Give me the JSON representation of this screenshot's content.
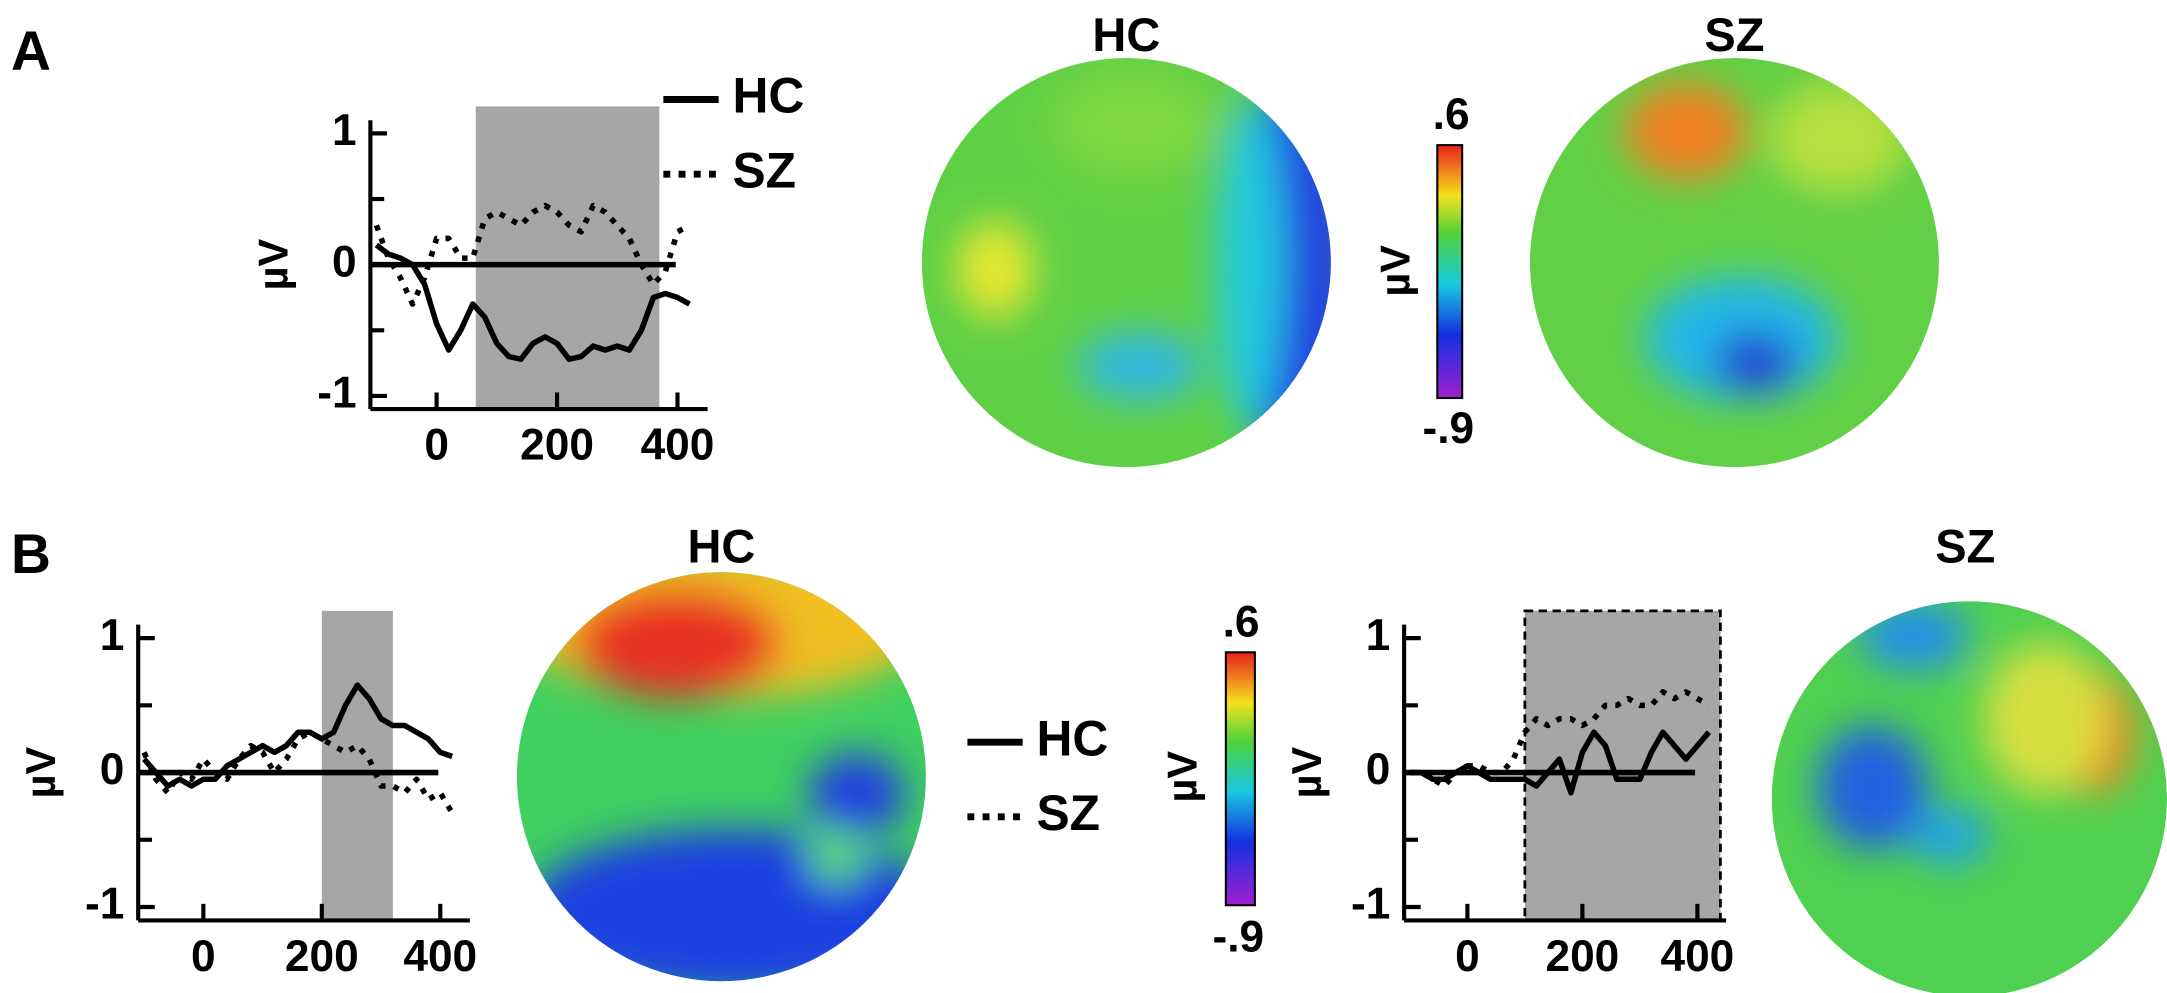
{
  "panel_labels": [
    "A",
    "B"
  ],
  "topomaps": [
    {
      "title": "HC"
    },
    {
      "title": "SZ"
    },
    {
      "title": "HC"
    },
    {
      "title": "SZ"
    }
  ],
  "colorbars": [
    {
      "unit": "µV",
      "top": {
        "value": 0.6,
        "label": ".6"
      },
      "bottom": {
        "value": -0.9,
        "label": "-.9"
      }
    },
    {
      "unit": "µV",
      "top": {
        "value": 0.6,
        "label": ".6"
      },
      "bottom": {
        "value": -0.9,
        "label": "-.9"
      }
    }
  ],
  "chart_data": [
    {
      "type": "line",
      "y_label": "µV",
      "xlim": [
        -110,
        450
      ],
      "ylim": [
        -1.1,
        1.1
      ],
      "xticks": [
        0,
        200,
        400
      ],
      "yticks": [
        -1,
        0,
        1
      ],
      "yminorticks": [
        -0.5,
        0.5
      ],
      "shade": [
        65,
        370
      ],
      "legend": "top-right",
      "x": [
        -100,
        -80,
        -60,
        -40,
        -20,
        0,
        20,
        40,
        60,
        80,
        100,
        120,
        140,
        160,
        180,
        200,
        220,
        240,
        260,
        280,
        300,
        320,
        340,
        360,
        380,
        400,
        420
      ],
      "series": [
        {
          "name": "HC",
          "color": "#000000",
          "style": "solid",
          "values": [
            0.15,
            0.08,
            0.05,
            0.0,
            -0.15,
            -0.45,
            -0.65,
            -0.5,
            -0.3,
            -0.4,
            -0.6,
            -0.7,
            -0.72,
            -0.6,
            -0.55,
            -0.6,
            -0.72,
            -0.7,
            -0.62,
            -0.65,
            -0.62,
            -0.65,
            -0.5,
            -0.25,
            -0.22,
            -0.25,
            -0.3
          ]
        },
        {
          "name": "SZ",
          "color": "#000000",
          "style": "dotted",
          "values": [
            0.3,
            0.05,
            -0.1,
            -0.3,
            -0.1,
            0.2,
            0.2,
            0.05,
            0.05,
            0.35,
            0.4,
            0.35,
            0.3,
            0.4,
            0.45,
            0.4,
            0.3,
            0.25,
            0.45,
            0.4,
            0.3,
            0.2,
            0.0,
            -0.15,
            -0.05,
            0.25,
            0.3
          ]
        }
      ]
    },
    {
      "type": "line",
      "y_label": "µV",
      "xlim": [
        -110,
        450
      ],
      "ylim": [
        -1.1,
        1.1
      ],
      "xticks": [
        0,
        200,
        400
      ],
      "yticks": [
        -1,
        0,
        1
      ],
      "yminorticks": [
        -0.5,
        0.5
      ],
      "shade": [
        200,
        320
      ],
      "legend": "middle",
      "x": [
        -100,
        -80,
        -60,
        -40,
        -20,
        0,
        20,
        40,
        60,
        80,
        100,
        120,
        140,
        160,
        180,
        200,
        220,
        240,
        260,
        280,
        300,
        320,
        340,
        360,
        380,
        400,
        420
      ],
      "series": [
        {
          "name": "HC",
          "color": "#000000",
          "style": "solid",
          "values": [
            0.1,
            0.0,
            -0.1,
            -0.05,
            -0.1,
            -0.05,
            -0.05,
            0.05,
            0.1,
            0.15,
            0.2,
            0.15,
            0.2,
            0.3,
            0.3,
            0.25,
            0.3,
            0.5,
            0.65,
            0.55,
            0.4,
            0.35,
            0.35,
            0.3,
            0.25,
            0.15,
            0.12
          ]
        },
        {
          "name": "SZ",
          "color": "#000000",
          "style": "dotted",
          "values": [
            0.15,
            -0.05,
            -0.15,
            0.0,
            -0.05,
            0.1,
            0.0,
            -0.05,
            0.1,
            0.2,
            0.15,
            0.0,
            0.1,
            0.25,
            0.3,
            0.25,
            0.2,
            0.15,
            0.2,
            0.1,
            -0.1,
            -0.1,
            -0.15,
            -0.05,
            -0.2,
            -0.15,
            -0.3
          ]
        }
      ]
    },
    {
      "type": "line",
      "y_label": "µV",
      "xlim": [
        -110,
        450
      ],
      "ylim": [
        -1.1,
        1.1
      ],
      "xticks": [
        0,
        200,
        400
      ],
      "yticks": [
        -1,
        0,
        1
      ],
      "yminorticks": [
        -0.5,
        0.5
      ],
      "shade": [
        100,
        440
      ],
      "x": [
        -100,
        -80,
        -60,
        -40,
        -20,
        0,
        20,
        40,
        60,
        80,
        100,
        120,
        140,
        160,
        180,
        200,
        220,
        240,
        260,
        280,
        300,
        320,
        340,
        360,
        380,
        400,
        420
      ],
      "series": [
        {
          "name": "HC",
          "color": "#000000",
          "style": "solid",
          "values": [
            0.0,
            0.0,
            -0.05,
            -0.05,
            0.0,
            0.05,
            0.0,
            -0.05,
            -0.05,
            -0.05,
            -0.05,
            -0.1,
            0.0,
            0.1,
            -0.15,
            0.15,
            0.3,
            0.2,
            -0.05,
            -0.05,
            -0.05,
            0.15,
            0.3,
            0.2,
            0.1,
            0.2,
            0.3
          ]
        },
        {
          "name": "SZ",
          "color": "#000000",
          "style": "dotted",
          "values": [
            0.0,
            0.0,
            -0.05,
            -0.1,
            0.0,
            0.05,
            0.05,
            0.0,
            0.0,
            0.1,
            0.3,
            0.4,
            0.35,
            0.4,
            0.4,
            0.35,
            0.4,
            0.5,
            0.5,
            0.55,
            0.5,
            0.5,
            0.6,
            0.55,
            0.6,
            0.55,
            0.5
          ]
        }
      ]
    }
  ]
}
